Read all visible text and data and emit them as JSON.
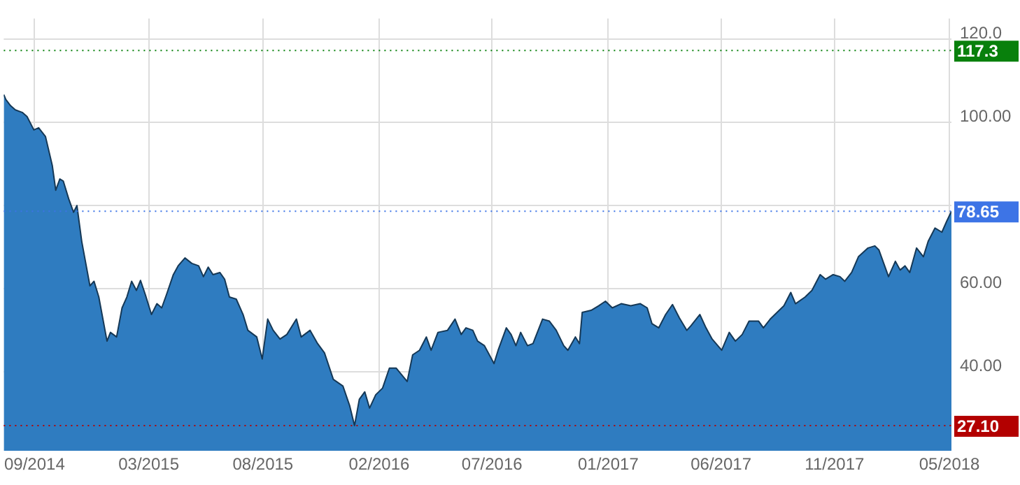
{
  "chart_data": {
    "type": "area",
    "x": [
      "2014-08-01",
      "2014-08-04",
      "2014-08-11",
      "2014-08-18",
      "2014-08-28",
      "2014-09-04",
      "2014-09-14",
      "2014-09-21",
      "2014-10-01",
      "2014-10-11",
      "2014-10-16",
      "2014-10-22",
      "2014-10-27",
      "2014-11-04",
      "2014-11-11",
      "2014-11-16",
      "2014-11-23",
      "2014-12-05",
      "2014-12-11",
      "2014-12-18",
      "2014-12-30",
      "2015-01-04",
      "2015-01-13",
      "2015-01-21",
      "2015-01-28",
      "2015-02-04",
      "2015-02-11",
      "2015-02-17",
      "2015-02-24",
      "2015-03-05",
      "2015-03-13",
      "2015-03-20",
      "2015-03-27",
      "2015-04-06",
      "2015-04-13",
      "2015-04-23",
      "2015-05-03",
      "2015-05-13",
      "2015-05-20",
      "2015-05-27",
      "2015-06-03",
      "2015-06-13",
      "2015-06-20",
      "2015-06-27",
      "2015-07-07",
      "2015-07-17",
      "2015-07-24",
      "2015-08-06",
      "2015-08-14",
      "2015-08-22",
      "2015-08-30",
      "2015-09-09",
      "2015-09-19",
      "2015-10-03",
      "2015-10-10",
      "2015-10-23",
      "2015-11-03",
      "2015-11-13",
      "2015-11-26",
      "2015-12-10",
      "2015-12-20",
      "2015-12-27",
      "2016-01-03",
      "2016-01-11",
      "2016-01-18",
      "2016-01-27",
      "2016-02-06",
      "2016-02-16",
      "2016-02-26",
      "2016-03-13",
      "2016-03-21",
      "2016-03-31",
      "2016-04-10",
      "2016-04-17",
      "2016-04-27",
      "2016-05-11",
      "2016-05-22",
      "2016-05-31",
      "2016-06-07",
      "2016-06-17",
      "2016-06-24",
      "2016-07-04",
      "2016-07-18",
      "2016-07-24",
      "2016-08-05",
      "2016-08-12",
      "2016-08-19",
      "2016-08-26",
      "2016-09-05",
      "2016-09-13",
      "2016-09-27",
      "2016-10-07",
      "2016-10-17",
      "2016-10-28",
      "2016-11-03",
      "2016-11-14",
      "2016-11-20",
      "2016-11-24",
      "2016-12-07",
      "2016-12-18",
      "2016-12-28",
      "2017-01-07",
      "2017-01-20",
      "2017-02-03",
      "2017-02-17",
      "2017-02-27",
      "2017-03-06",
      "2017-03-16",
      "2017-03-26",
      "2017-04-05",
      "2017-04-15",
      "2017-04-26",
      "2017-05-02",
      "2017-05-15",
      "2017-05-24",
      "2017-06-02",
      "2017-06-16",
      "2017-06-27",
      "2017-07-06",
      "2017-07-16",
      "2017-07-26",
      "2017-08-09",
      "2017-08-16",
      "2017-08-26",
      "2017-09-05",
      "2017-09-15",
      "2017-09-25",
      "2017-10-02",
      "2017-10-16",
      "2017-10-26",
      "2017-11-07",
      "2017-11-15",
      "2017-11-26",
      "2017-12-06",
      "2017-12-13",
      "2017-12-23",
      "2018-01-02",
      "2018-01-16",
      "2018-01-26",
      "2018-02-01",
      "2018-02-15",
      "2018-02-25",
      "2018-03-04",
      "2018-03-11",
      "2018-03-18",
      "2018-03-28",
      "2018-04-07",
      "2018-04-14",
      "2018-04-24",
      "2018-05-04",
      "2018-05-11",
      "2018-05-18"
    ],
    "series": [
      {
        "color": "#2f7cc0",
        "values": [
          106.7,
          105.5,
          104.0,
          103.0,
          102.4,
          101.4,
          98.2,
          98.7,
          96.6,
          89.6,
          83.7,
          86.4,
          85.9,
          81.6,
          78.4,
          80.0,
          71.4,
          60.7,
          61.8,
          58.0,
          47.4,
          49.5,
          48.4,
          55.4,
          58.0,
          61.8,
          59.6,
          62.0,
          58.6,
          53.8,
          56.4,
          55.4,
          58.6,
          63.4,
          65.5,
          67.4,
          66.1,
          65.5,
          62.9,
          65.2,
          63.4,
          63.9,
          62.3,
          58.0,
          57.5,
          53.8,
          50.0,
          48.4,
          43.1,
          52.7,
          50.0,
          47.9,
          49.0,
          52.7,
          48.4,
          50.0,
          46.8,
          44.6,
          38.2,
          36.6,
          31.8,
          27.1,
          33.4,
          35.2,
          31.3,
          34.5,
          36.1,
          40.9,
          40.9,
          37.7,
          44.1,
          45.2,
          48.4,
          45.2,
          49.5,
          50.0,
          52.7,
          49.0,
          50.6,
          50.0,
          47.4,
          46.3,
          42.0,
          45.2,
          50.6,
          49.0,
          46.3,
          49.5,
          46.3,
          46.8,
          52.7,
          52.2,
          50.0,
          46.3,
          45.2,
          48.4,
          46.8,
          54.3,
          54.8,
          55.9,
          57.0,
          55.4,
          56.4,
          55.9,
          56.4,
          55.4,
          51.6,
          50.6,
          53.8,
          56.2,
          53.0,
          50.0,
          51.1,
          53.8,
          50.6,
          47.9,
          45.2,
          49.5,
          47.4,
          49.0,
          52.2,
          52.2,
          50.6,
          52.7,
          54.3,
          55.9,
          59.1,
          56.4,
          58.0,
          59.6,
          63.4,
          62.3,
          63.4,
          62.9,
          61.8,
          63.9,
          67.7,
          69.8,
          70.3,
          69.3,
          62.9,
          66.6,
          64.5,
          65.5,
          63.9,
          69.8,
          67.7,
          71.4,
          74.6,
          73.6,
          76.2,
          78.6
        ]
      }
    ],
    "xlim": [
      "2014-08-01",
      "2018-05-18"
    ],
    "xticks": [
      {
        "value": "2014-09-15",
        "label": "09/2014"
      },
      {
        "value": "2015-03-01",
        "label": "03/2015"
      },
      {
        "value": "2015-08-15",
        "label": "08/2015"
      },
      {
        "value": "2016-02-01",
        "label": "02/2016"
      },
      {
        "value": "2016-07-15",
        "label": "07/2016"
      },
      {
        "value": "2017-01-01",
        "label": "01/2017"
      },
      {
        "value": "2017-06-15",
        "label": "06/2017"
      },
      {
        "value": "2017-11-28",
        "label": "11/2017"
      },
      {
        "value": "2018-05-15",
        "label": "05/2018"
      }
    ],
    "ylim": [
      21,
      125
    ],
    "yticks": [
      {
        "value": 40,
        "label": "40.00"
      },
      {
        "value": 60,
        "label": "60.00"
      },
      {
        "value": 80,
        "label": null
      },
      {
        "value": 100,
        "label": "100.00"
      },
      {
        "value": 120,
        "label": "120.0"
      }
    ],
    "ref_lines": [
      {
        "axis": "y",
        "value": 117.3,
        "label": "117.3",
        "color": "#08800c"
      },
      {
        "axis": "y",
        "value": 78.65,
        "label": "78.65",
        "color": "#3d74e6"
      },
      {
        "axis": "y",
        "value": 27.1,
        "label": "27.10",
        "color": "#b30000"
      }
    ],
    "grid": true,
    "legend": false
  }
}
